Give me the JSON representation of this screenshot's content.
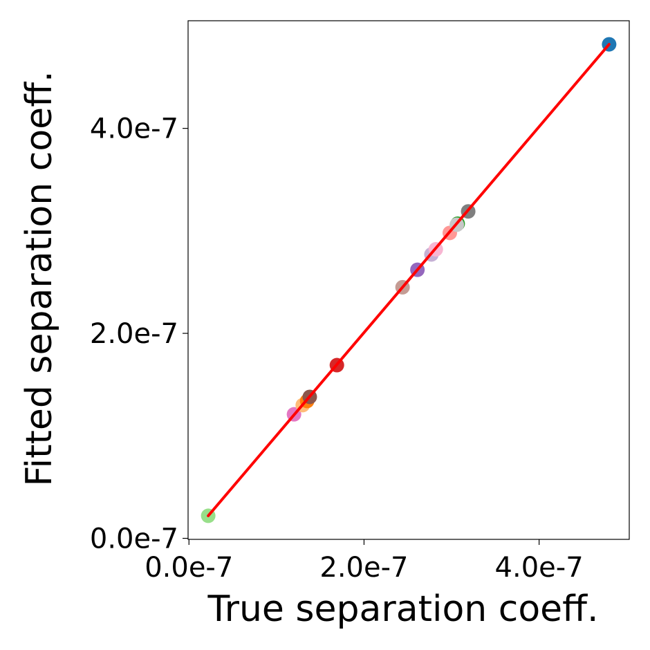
{
  "chart_data": {
    "type": "scatter",
    "title": "",
    "xlabel": "True separation coeff.",
    "ylabel": "Fitted separation coeff.",
    "xlim": [
      -1e-09,
      5.03e-07
    ],
    "ylim": [
      -1e-09,
      5.05e-07
    ],
    "x_ticks": [
      {
        "value": 0.0,
        "label": "0.0e-7"
      },
      {
        "value": 2e-07,
        "label": "2.0e-7"
      },
      {
        "value": 4e-07,
        "label": "4.0e-7"
      }
    ],
    "y_ticks": [
      {
        "value": 0.0,
        "label": "0.0e-7"
      },
      {
        "value": 2e-07,
        "label": "2.0e-7"
      },
      {
        "value": 4e-07,
        "label": "4.0e-7"
      }
    ],
    "grid": false,
    "legend": "none",
    "points": [
      {
        "x": 2.2e-08,
        "y": 2.2e-08,
        "color": "#98df8a"
      },
      {
        "x": 1.2e-07,
        "y": 1.21e-07,
        "color": "#e377c2"
      },
      {
        "x": 1.3e-07,
        "y": 1.3e-07,
        "color": "#ffbb78"
      },
      {
        "x": 1.35e-07,
        "y": 1.34e-07,
        "color": "#ff7f0e"
      },
      {
        "x": 1.38e-07,
        "y": 1.38e-07,
        "color": "#8c564b"
      },
      {
        "x": 1.69e-07,
        "y": 1.69e-07,
        "color": "#d62728"
      },
      {
        "x": 2.44e-07,
        "y": 2.45e-07,
        "color": "#c49c94"
      },
      {
        "x": 2.61e-07,
        "y": 2.62e-07,
        "color": "#9467bd"
      },
      {
        "x": 2.77e-07,
        "y": 2.77e-07,
        "color": "#c5b0d5"
      },
      {
        "x": 2.82e-07,
        "y": 2.82e-07,
        "color": "#f7b6d2"
      },
      {
        "x": 2.98e-07,
        "y": 2.98e-07,
        "color": "#ff9896"
      },
      {
        "x": 3.07e-07,
        "y": 3.07e-07,
        "color": "#2ca02c"
      },
      {
        "x": 3.06e-07,
        "y": 3.06e-07,
        "color": "#c7c7c7"
      },
      {
        "x": 3.19e-07,
        "y": 3.19e-07,
        "color": "#7f7f7f"
      },
      {
        "x": 4.8e-07,
        "y": 4.82e-07,
        "color": "#1f77b4"
      }
    ],
    "fit_line": {
      "x": [
        2.2e-08,
        4.8e-07
      ],
      "y": [
        2.2e-08,
        4.82e-07
      ],
      "color": "#ff0000"
    }
  }
}
